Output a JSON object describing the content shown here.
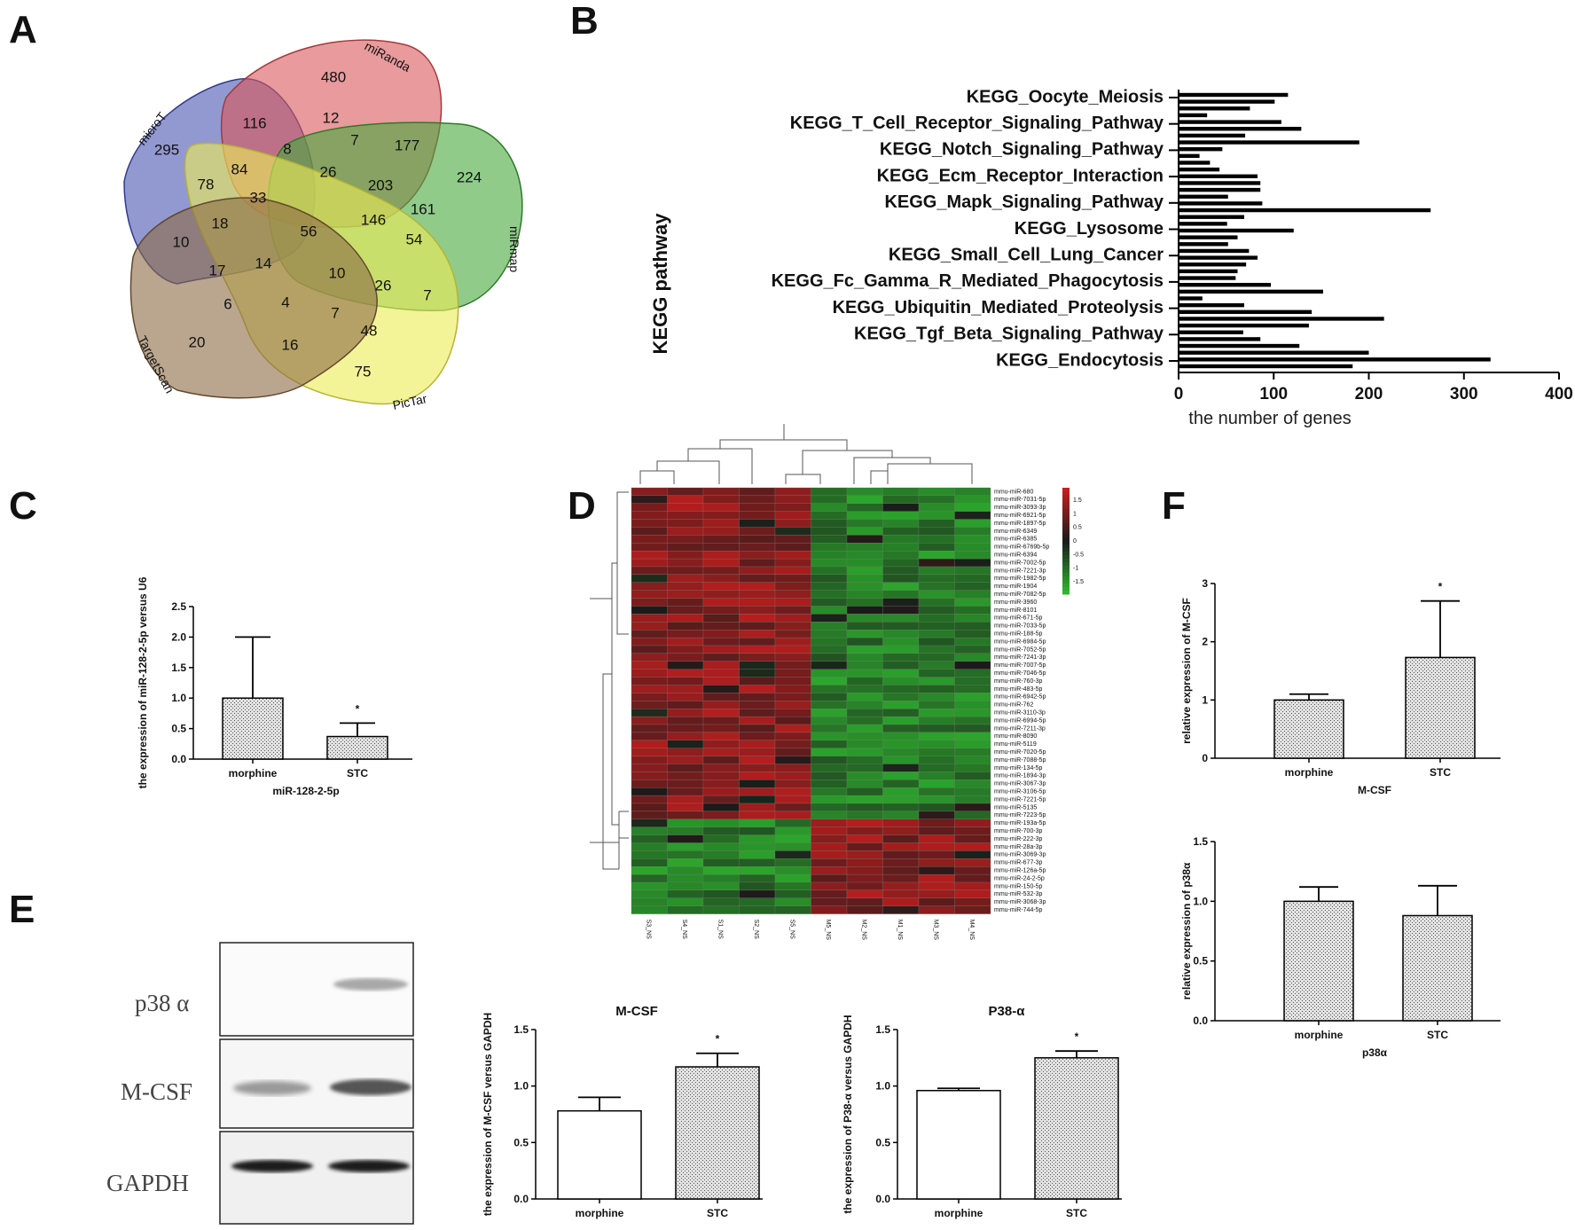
{
  "panel_letters": [
    "A",
    "B",
    "C",
    "D",
    "E",
    "F"
  ],
  "venn": {
    "sets": [
      "microT",
      "miRanda",
      "miRmap",
      "PicTar",
      "TargetScan"
    ],
    "colors": {
      "microT": "#4a55b0",
      "miRanda": "#d9565a",
      "miRmap": "#46a83c",
      "PicTar": "#eceb58",
      "TargetScan": "#8c6a45"
    },
    "numbers": [
      "295",
      "480",
      "224",
      "75",
      "20",
      "116",
      "12",
      "7",
      "177",
      "8",
      "84",
      "78",
      "26",
      "203",
      "161",
      "33",
      "18",
      "56",
      "146",
      "54",
      "10",
      "17",
      "14",
      "10",
      "26",
      "7",
      "6",
      "4",
      "7",
      "48",
      "16"
    ]
  },
  "chart_data": [
    {
      "panel": "B",
      "type": "bar",
      "orientation": "horizontal",
      "ylabel": "KEGG pathway",
      "xlabel": "the number of genes",
      "xlim": [
        0,
        400
      ],
      "xticks": [
        "0",
        "100",
        "200",
        "300",
        "400"
      ],
      "labeled_pathways": [
        "KEGG_Oocyte_Meiosis",
        "KEGG_T_Cell_Receptor_Signaling_Pathway",
        "KEGG_Notch_Signaling_Pathway",
        "KEGG_Ecm_Receptor_Interaction",
        "KEGG_Mapk_Signaling_Pathway",
        "KEGG_Lysosome",
        "KEGG_Small_Cell_Lung_Cancer",
        "KEGG_Fc_Gamma_R_Mediated_Phagocytosis",
        "KEGG_Ubiquitin_Mediated_Proteolysis",
        "KEGG_Tgf_Beta_Signaling_Pathway",
        "KEGG_Endocytosis"
      ],
      "values": [
        115,
        101,
        75,
        30,
        108,
        129,
        70,
        190,
        46,
        22,
        33,
        43,
        83,
        86,
        86,
        52,
        88,
        265,
        69,
        51,
        121,
        62,
        52,
        74,
        83,
        71,
        62,
        60,
        97,
        152,
        25,
        69,
        140,
        216,
        137,
        68,
        86,
        127,
        200,
        328,
        183
      ]
    },
    {
      "panel": "C",
      "type": "bar",
      "categories": [
        "morphine",
        "STC"
      ],
      "values": [
        1.0,
        0.37
      ],
      "errors": [
        1.0,
        0.22
      ],
      "ylabel": "the expression of miR-128-2-5p versus U6",
      "xlabel": "miR-128-2-5p",
      "ylim": [
        0,
        2.5
      ],
      "yticks": [
        "0.0",
        "0.5",
        "1.0",
        "1.5",
        "2.0",
        "2.5"
      ],
      "annotation": "*"
    },
    {
      "panel": "D",
      "type": "heatmap",
      "columns": [
        "S3_NS",
        "S4_NS",
        "S1_NS",
        "S2_NS",
        "S5_NS",
        "M5_NS",
        "M2_NS",
        "M1_NS",
        "M3_NS",
        "M4_NS"
      ],
      "rows": [
        "mmu-miR-680",
        "mmu-miR-7031-5p",
        "mmu-miR-3093-3p",
        "mmu-miR-6921-5p",
        "mmu-miR-1897-5p",
        "mmu-miR-6349",
        "mmu-miR-6385",
        "mmu-miR-6769b-5p",
        "mmu-miR-6394",
        "mmu-miR-7002-5p",
        "mmu-miR-7221-3p",
        "mmu-miR-1982-5p",
        "mmu-miR-1904",
        "mmu-miR-7082-5p",
        "mmu-miR-3960",
        "mmu-miR-8101",
        "mmu-miR-671-5p",
        "mmu-miR-7033-5p",
        "mmu-miR-188-5p",
        "mmu-miR-6984-5p",
        "mmu-miR-7052-5p",
        "mmu-miR-7241-3p",
        "mmu-miR-7007-5p",
        "mmu-miR-7046-5p",
        "mmu-miR-760-3p",
        "mmu-miR-483-5p",
        "mmu-miR-6942-5p",
        "mmu-miR-762",
        "mmu-miR-3110-3p",
        "mmu-miR-6994-5p",
        "mmu-miR-7211-3p",
        "mmu-miR-8090",
        "mmu-miR-5119",
        "mmu-miR-7020-5p",
        "mmu-miR-7088-5p",
        "mmu-miR-134-5p",
        "mmu-miR-1894-3p",
        "mmu-miR-3067-3p",
        "mmu-miR-3106-5p",
        "mmu-miR-7221-5p",
        "mmu-miR-5135",
        "mmu-miR-7223-5p",
        "mmu-miR-193a-5p",
        "mmu-miR-700-3p",
        "mmu-miR-222-3p",
        "mmu-miR-28a-3p",
        "mmu-miR-3069-3p",
        "mmu-miR-677-3p",
        "mmu-miR-126a-5p",
        "mmu-miR-24-2-5p",
        "mmu-miR-150-5p",
        "mmu-miR-532-3p",
        "mmu-miR-3068-3p",
        "mmu-miR-744-5p"
      ],
      "up_rows_count": 42,
      "color_scale": {
        "min": -1.5,
        "max": 1.5,
        "ticks": [
          "1.5",
          "1",
          "0.5",
          "0",
          "-0.5",
          "-1",
          "-1.5"
        ],
        "low": "#2db82d",
        "mid": "#1a1a1a",
        "high": "#c81e1e"
      }
    },
    {
      "panel": "E",
      "type": "bar",
      "title": "M-CSF",
      "categories": [
        "morphine",
        "STC"
      ],
      "values": [
        0.78,
        1.17
      ],
      "errors": [
        0.12,
        0.12
      ],
      "ylabel": "the expression of M-CSF versus GAPDH",
      "ylim": [
        0,
        1.5
      ],
      "yticks": [
        "0.0",
        "0.5",
        "1.0",
        "1.5"
      ],
      "annotation": "*"
    },
    {
      "panel": "E",
      "type": "bar",
      "title": "P38-α",
      "categories": [
        "morphine",
        "STC"
      ],
      "values": [
        0.96,
        1.25
      ],
      "errors": [
        0.02,
        0.06
      ],
      "ylabel": "the expression of P38-α versus GAPDH",
      "ylim": [
        0,
        1.5
      ],
      "yticks": [
        "0.0",
        "0.5",
        "1.0",
        "1.5"
      ],
      "annotation": "*"
    },
    {
      "panel": "F",
      "type": "bar",
      "categories": [
        "morphine",
        "STC"
      ],
      "values": [
        1.0,
        1.73
      ],
      "errors": [
        0.1,
        0.97
      ],
      "ylabel": "relative expression of M-CSF",
      "xlabel": "M-CSF",
      "ylim": [
        0,
        3
      ],
      "yticks": [
        "0",
        "1",
        "2",
        "3"
      ],
      "annotation": "*"
    },
    {
      "panel": "F",
      "type": "bar",
      "categories": [
        "morphine",
        "STC"
      ],
      "values": [
        1.0,
        0.88
      ],
      "errors": [
        0.12,
        0.25
      ],
      "ylabel": "relative expression of p38α",
      "xlabel": "p38α",
      "ylim": [
        0,
        1.5
      ],
      "yticks": [
        "0.0",
        "0.5",
        "1.0",
        "1.5"
      ]
    }
  ],
  "blot": {
    "labels": [
      "p38 α",
      "M-CSF",
      "GAPDH"
    ]
  }
}
